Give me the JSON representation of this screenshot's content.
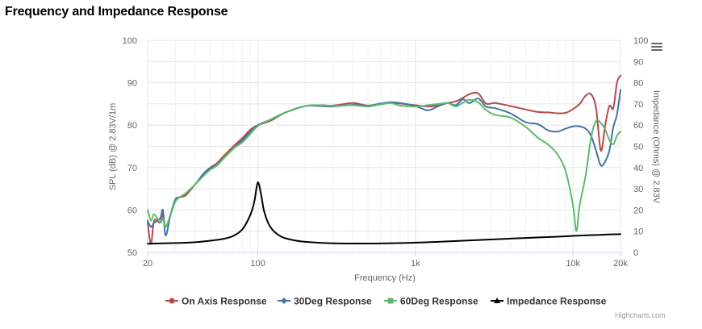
{
  "title": "Frequency and Impedance Response",
  "credits": "Highcharts.com",
  "menu_icon": "hamburger-menu-icon",
  "chart_data": {
    "type": "line",
    "xscale": "log",
    "xlim": [
      20,
      20000
    ],
    "x_ticks": [
      {
        "value": 20,
        "label": "20"
      },
      {
        "value": 100,
        "label": "100"
      },
      {
        "value": 1000,
        "label": "1k"
      },
      {
        "value": 10000,
        "label": "10k"
      },
      {
        "value": 20000,
        "label": "20k"
      }
    ],
    "xlabel": "Frequency (Hz)",
    "y_left": {
      "label": "SPL (dB) @ 2.83V/1m",
      "lim": [
        50,
        100
      ],
      "ticks": [
        50,
        60,
        70,
        80,
        90,
        100
      ]
    },
    "y_right": {
      "label": "Impedance (Ohms) @ 2.83V",
      "lim": [
        0,
        100
      ],
      "ticks": [
        0,
        10,
        20,
        30,
        40,
        50,
        60,
        70,
        80,
        90,
        100
      ]
    },
    "grid": true,
    "legend_position": "bottom",
    "series": [
      {
        "name": "On Axis Response",
        "color": "#b24a4a",
        "axis": "left",
        "marker": "circle",
        "points": [
          [
            20,
            57
          ],
          [
            21,
            52
          ],
          [
            22,
            57.5
          ],
          [
            24,
            57
          ],
          [
            25,
            59
          ],
          [
            26,
            56
          ],
          [
            28,
            59
          ],
          [
            30,
            62.5
          ],
          [
            32,
            63
          ],
          [
            35,
            63.5
          ],
          [
            40,
            66
          ],
          [
            45,
            68
          ],
          [
            50,
            70
          ],
          [
            55,
            71
          ],
          [
            60,
            72.5
          ],
          [
            70,
            75
          ],
          [
            80,
            77
          ],
          [
            90,
            79
          ],
          [
            100,
            80
          ],
          [
            120,
            81
          ],
          [
            150,
            83
          ],
          [
            200,
            84.5
          ],
          [
            250,
            84.7
          ],
          [
            300,
            84.6
          ],
          [
            400,
            85.2
          ],
          [
            500,
            84.6
          ],
          [
            600,
            84.9
          ],
          [
            700,
            85.3
          ],
          [
            800,
            85.1
          ],
          [
            1000,
            84.7
          ],
          [
            1200,
            84.4
          ],
          [
            1400,
            84.7
          ],
          [
            1600,
            85.2
          ],
          [
            1800,
            85.6
          ],
          [
            2000,
            86.4
          ],
          [
            2200,
            87.3
          ],
          [
            2500,
            87.5
          ],
          [
            2800,
            85.1
          ],
          [
            3200,
            85.2
          ],
          [
            4000,
            84.5
          ],
          [
            5000,
            83.7
          ],
          [
            6000,
            83.1
          ],
          [
            7000,
            83.0
          ],
          [
            8000,
            82.8
          ],
          [
            9000,
            82.9
          ],
          [
            10000,
            83.8
          ],
          [
            11000,
            85
          ],
          [
            12000,
            86.9
          ],
          [
            13000,
            87.3
          ],
          [
            14000,
            84
          ],
          [
            15000,
            74
          ],
          [
            16000,
            80
          ],
          [
            17000,
            84.5
          ],
          [
            18000,
            84
          ],
          [
            19000,
            90
          ],
          [
            20000,
            91.7
          ]
        ]
      },
      {
        "name": "30Deg Response",
        "color": "#4572a7",
        "axis": "left",
        "marker": "diamond",
        "points": [
          [
            20,
            57.5
          ],
          [
            21,
            56
          ],
          [
            22,
            57
          ],
          [
            24,
            58
          ],
          [
            25,
            60
          ],
          [
            26,
            54
          ],
          [
            28,
            59
          ],
          [
            30,
            62.5
          ],
          [
            32,
            63
          ],
          [
            35,
            64
          ],
          [
            40,
            66
          ],
          [
            45,
            68.5
          ],
          [
            50,
            70
          ],
          [
            55,
            70.5
          ],
          [
            60,
            72
          ],
          [
            70,
            74.5
          ],
          [
            80,
            76.5
          ],
          [
            90,
            78.5
          ],
          [
            100,
            80
          ],
          [
            120,
            81.3
          ],
          [
            150,
            83
          ],
          [
            200,
            84.5
          ],
          [
            250,
            84.5
          ],
          [
            300,
            84.4
          ],
          [
            400,
            84.8
          ],
          [
            500,
            84.6
          ],
          [
            600,
            85.1
          ],
          [
            700,
            85.4
          ],
          [
            800,
            85.2
          ],
          [
            1000,
            84.5
          ],
          [
            1200,
            83.5
          ],
          [
            1400,
            84.5
          ],
          [
            1600,
            85.2
          ],
          [
            1800,
            84.7
          ],
          [
            2000,
            86.1
          ],
          [
            2200,
            85.2
          ],
          [
            2500,
            86.3
          ],
          [
            2800,
            84.4
          ],
          [
            3200,
            84
          ],
          [
            4000,
            82.8
          ],
          [
            5000,
            80.7
          ],
          [
            6000,
            80.2
          ],
          [
            7000,
            78.7
          ],
          [
            8000,
            78.5
          ],
          [
            9000,
            79.2
          ],
          [
            10000,
            79.7
          ],
          [
            11000,
            79.7
          ],
          [
            12000,
            79.2
          ],
          [
            13000,
            77.5
          ],
          [
            14000,
            74
          ],
          [
            15000,
            70.5
          ],
          [
            16000,
            71.5
          ],
          [
            17000,
            74
          ],
          [
            18000,
            79.5
          ],
          [
            19000,
            82.5
          ],
          [
            20000,
            88.3
          ]
        ]
      },
      {
        "name": "60Deg Response",
        "color": "#5cba6d",
        "axis": "left",
        "marker": "square",
        "points": [
          [
            20,
            60
          ],
          [
            21,
            57.5
          ],
          [
            22,
            59
          ],
          [
            24,
            57
          ],
          [
            25,
            58
          ],
          [
            26,
            56
          ],
          [
            28,
            59
          ],
          [
            30,
            62
          ],
          [
            32,
            63
          ],
          [
            35,
            64
          ],
          [
            40,
            66
          ],
          [
            45,
            68
          ],
          [
            50,
            69.5
          ],
          [
            55,
            70.5
          ],
          [
            60,
            72
          ],
          [
            70,
            74.5
          ],
          [
            80,
            76
          ],
          [
            90,
            78
          ],
          [
            100,
            79.8
          ],
          [
            120,
            81.3
          ],
          [
            150,
            83
          ],
          [
            200,
            84.5
          ],
          [
            250,
            84.7
          ],
          [
            300,
            84.5
          ],
          [
            400,
            84.7
          ],
          [
            500,
            84.4
          ],
          [
            600,
            84.9
          ],
          [
            700,
            85.2
          ],
          [
            800,
            84.6
          ],
          [
            1000,
            84.4
          ],
          [
            1200,
            84.7
          ],
          [
            1400,
            85
          ],
          [
            1600,
            85.2
          ],
          [
            1800,
            84.4
          ],
          [
            2000,
            85.3
          ],
          [
            2200,
            86
          ],
          [
            2500,
            85.4
          ],
          [
            2800,
            83.6
          ],
          [
            3200,
            82.4
          ],
          [
            4000,
            81.8
          ],
          [
            5000,
            79.6
          ],
          [
            6000,
            77
          ],
          [
            7000,
            75.3
          ],
          [
            8000,
            73
          ],
          [
            9000,
            69
          ],
          [
            10000,
            61
          ],
          [
            10500,
            55
          ],
          [
            11000,
            61
          ],
          [
            12000,
            68
          ],
          [
            13000,
            77
          ],
          [
            14000,
            81
          ],
          [
            15000,
            80.5
          ],
          [
            16000,
            79
          ],
          [
            17000,
            76.5
          ],
          [
            18000,
            75.5
          ],
          [
            19000,
            77.5
          ],
          [
            20000,
            78.5
          ]
        ]
      },
      {
        "name": "Impedance Response",
        "color": "#000000",
        "axis": "right",
        "marker": "triangle",
        "points": [
          [
            20,
            4.1
          ],
          [
            30,
            4.4
          ],
          [
            40,
            4.8
          ],
          [
            50,
            5.5
          ],
          [
            60,
            6.3
          ],
          [
            70,
            7.8
          ],
          [
            80,
            11
          ],
          [
            90,
            18
          ],
          [
            95,
            24
          ],
          [
            100,
            33
          ],
          [
            105,
            27
          ],
          [
            110,
            19
          ],
          [
            120,
            12
          ],
          [
            140,
            7.5
          ],
          [
            170,
            5.7
          ],
          [
            200,
            5
          ],
          [
            300,
            4.3
          ],
          [
            500,
            4.2
          ],
          [
            1000,
            4.6
          ],
          [
            2000,
            5.5
          ],
          [
            3000,
            6.1
          ],
          [
            5000,
            6.8
          ],
          [
            8000,
            7.4
          ],
          [
            10000,
            7.8
          ],
          [
            15000,
            8.3
          ],
          [
            20000,
            8.6
          ]
        ]
      }
    ]
  }
}
